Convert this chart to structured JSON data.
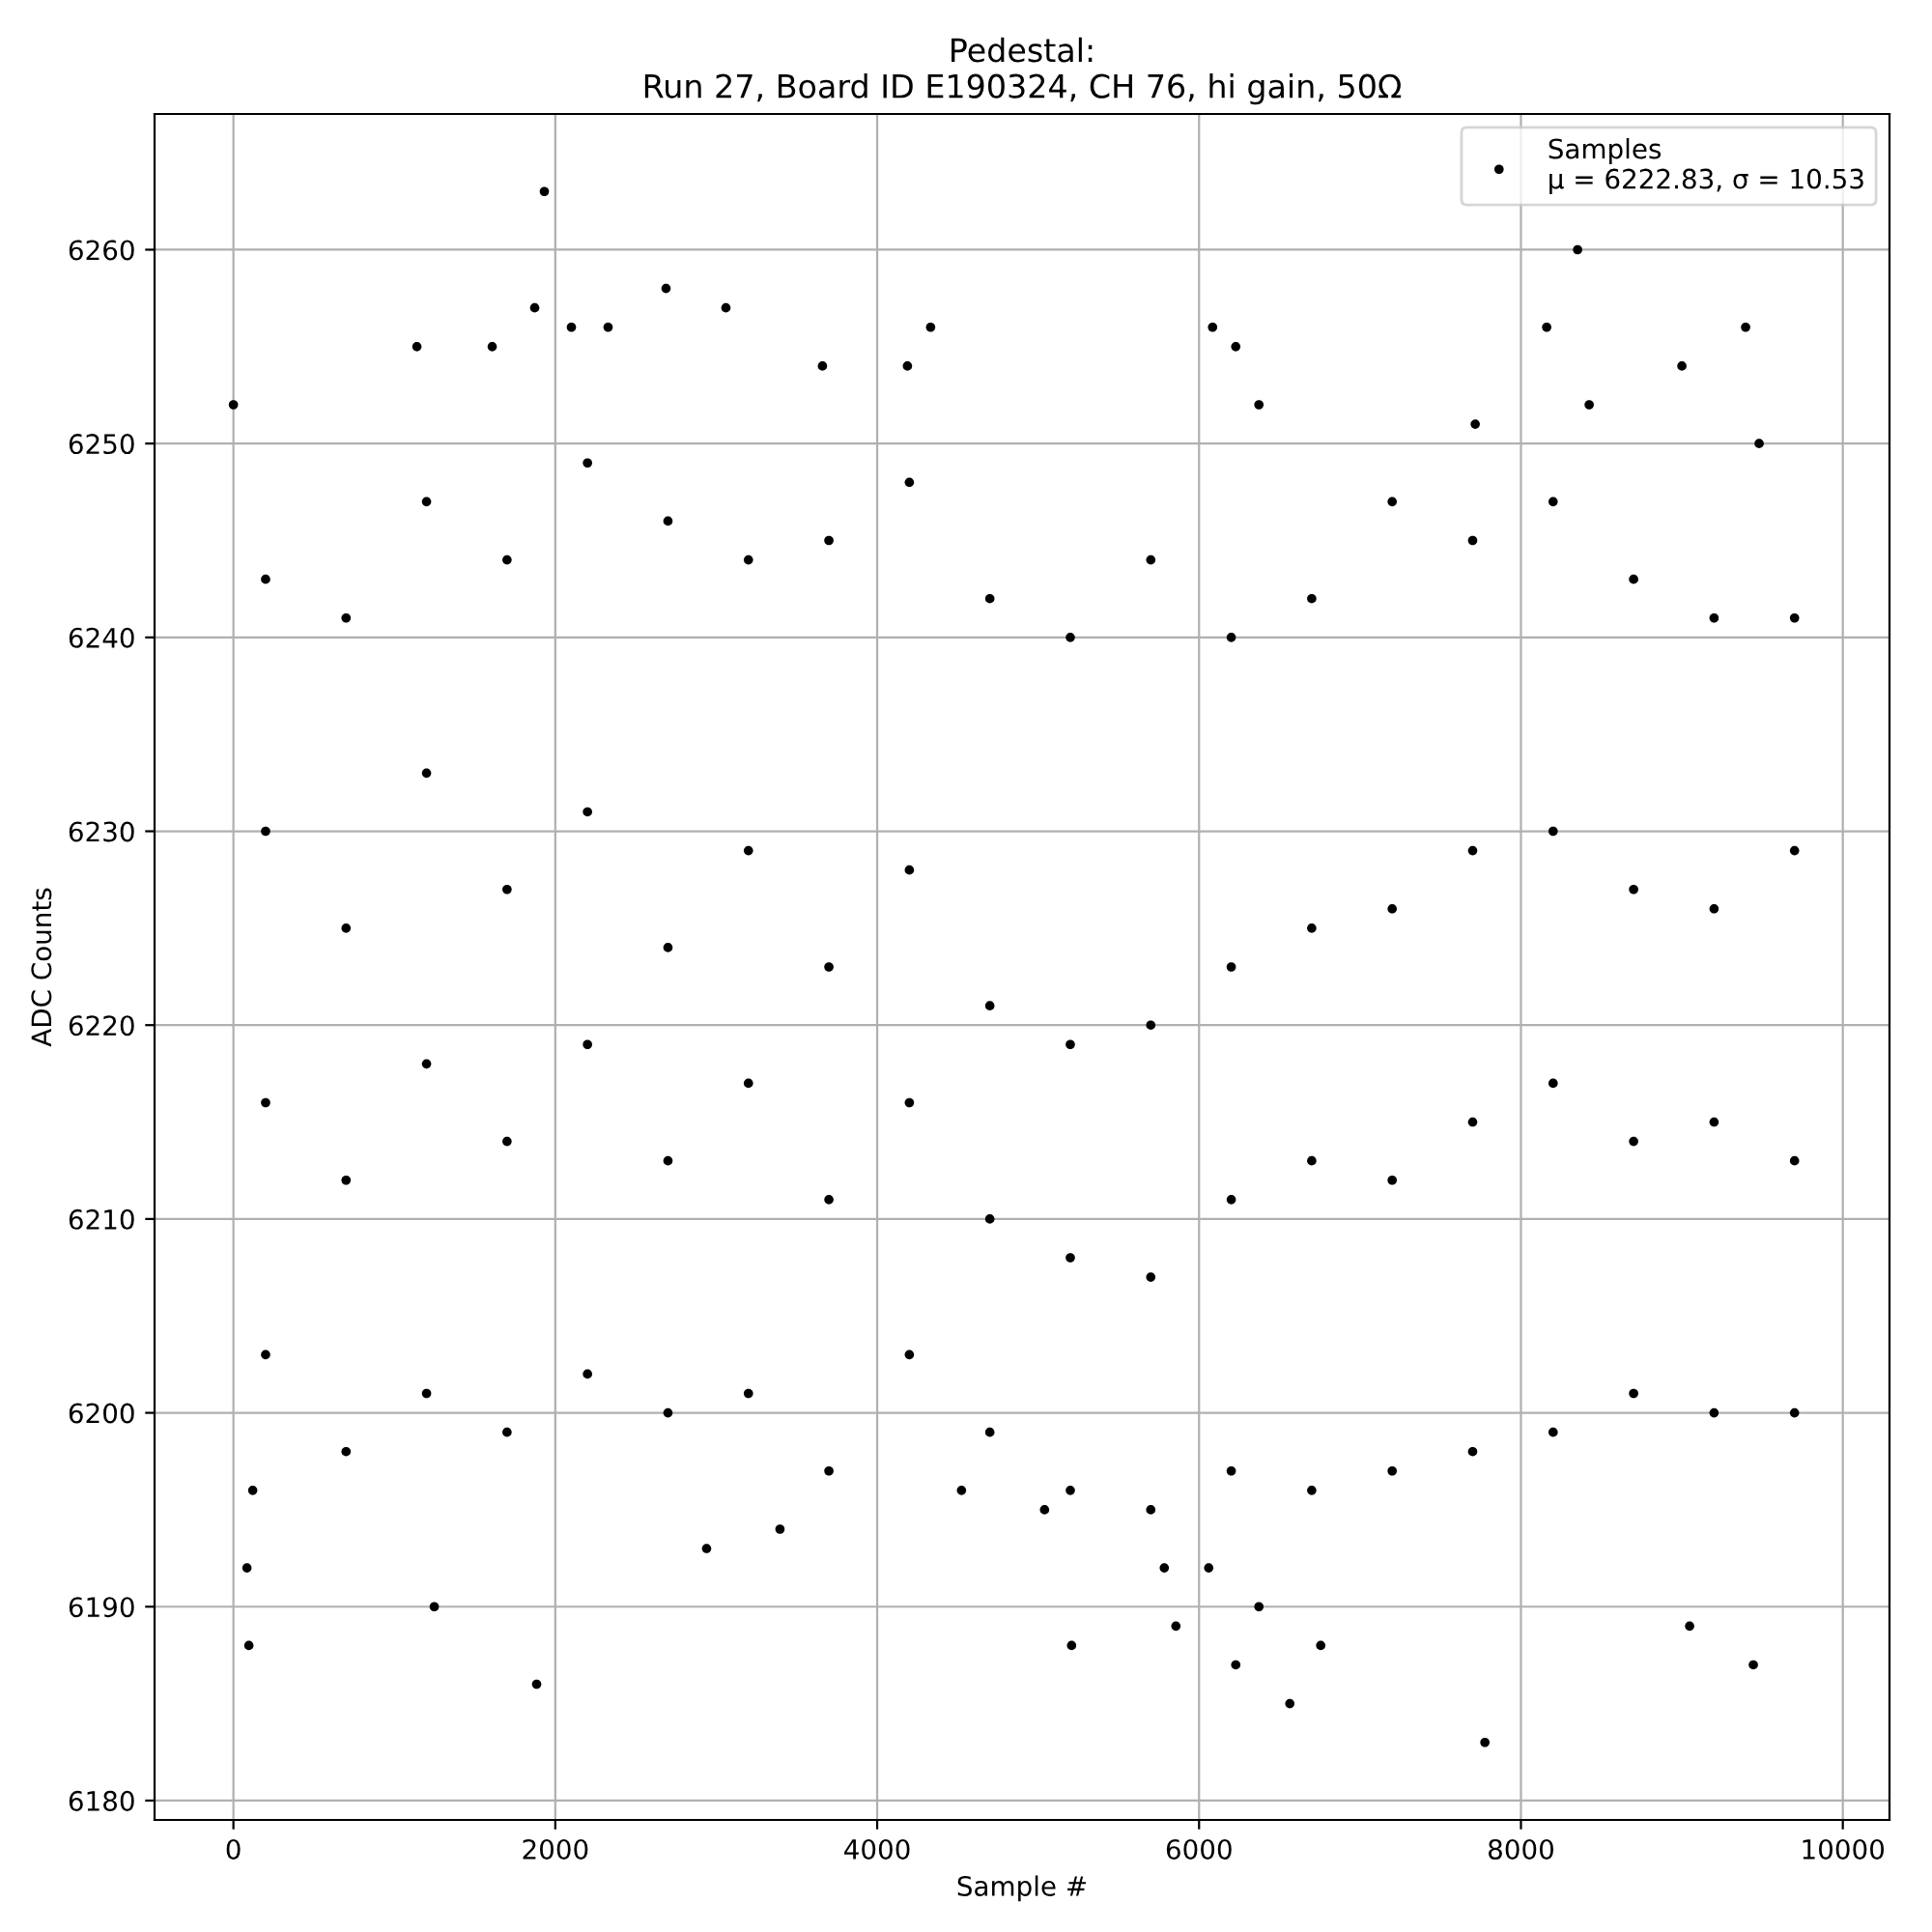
{
  "chart_data": {
    "type": "scatter",
    "title": "Pedestal:\nRun 27, Board ID E190324, CH 76, hi gain, 50Ω",
    "xlabel": "Sample #",
    "ylabel": "ADC Counts",
    "series": [
      {
        "name": "Samples\nμ = 6222.83, σ = 10.53",
        "color": "#000000",
        "x": [
          0,
          84,
          96,
          120,
          1248,
          1884,
          1932,
          1872,
          1140,
          1608,
          2100,
          2328,
          2688,
          3060,
          2940,
          3396,
          3660,
          4332,
          4188,
          4524,
          5040,
          5208,
          5856,
          5784,
          6060,
          6228,
          6372,
          6564,
          6756,
          6084,
          6228,
          6372,
          7776,
          7716,
          8160,
          8352,
          8424,
          9000,
          9048,
          9396,
          9444,
          9480,
          200,
          200,
          200,
          200,
          700,
          700,
          700,
          700,
          1200,
          1200,
          1200,
          1200,
          1700,
          1700,
          1700,
          1700,
          2200,
          2200,
          2200,
          2200,
          2700,
          2700,
          2700,
          2700,
          3200,
          3200,
          3200,
          3200,
          3700,
          3700,
          3700,
          3700,
          4200,
          4200,
          4200,
          4200,
          4700,
          4700,
          4700,
          4700,
          5200,
          5200,
          5200,
          5200,
          5700,
          5700,
          5700,
          5700,
          6200,
          6200,
          6200,
          6200,
          6700,
          6700,
          6700,
          6700,
          7200,
          7200,
          7200,
          7200,
          7700,
          7700,
          7700,
          7700,
          8200,
          8200,
          8200,
          8200,
          8700,
          8700,
          8700,
          8700,
          9200,
          9200,
          9200,
          9200,
          9700,
          9700,
          9700,
          9700
        ],
        "values": [
          6252,
          6192,
          6188,
          6196,
          6190,
          6186,
          6263,
          6257,
          6255,
          6255,
          6256,
          6256,
          6258,
          6257,
          6193,
          6194,
          6254,
          6256,
          6254,
          6196,
          6195,
          6188,
          6189,
          6192,
          6192,
          6187,
          6190,
          6185,
          6188,
          6256,
          6255,
          6252,
          6183,
          6251,
          6256,
          6260,
          6252,
          6254,
          6189,
          6256,
          6187,
          6250,
          6203,
          6216,
          6230,
          6243,
          6198,
          6212,
          6225,
          6241,
          6201,
          6218,
          6233,
          6247,
          6199,
          6214,
          6227,
          6244,
          6202,
          6219,
          6231,
          6249,
          6200,
          6213,
          6224,
          6246,
          6201,
          6217,
          6229,
          6244,
          6197,
          6211,
          6223,
          6245,
          6203,
          6216,
          6228,
          6248,
          6199,
          6210,
          6221,
          6242,
          6196,
          6208,
          6219,
          6240,
          6195,
          6207,
          6220,
          6244,
          6197,
          6211,
          6223,
          6240,
          6196,
          6213,
          6225,
          6242,
          6197,
          6212,
          6226,
          6247,
          6198,
          6215,
          6229,
          6245,
          6199,
          6217,
          6230,
          6247,
          6201,
          6214,
          6227,
          6243,
          6200,
          6215,
          6226,
          6241,
          6200,
          6213,
          6229,
          6241
        ]
      }
    ],
    "marker": "circle",
    "xlim": [
      -490,
      10290
    ],
    "ylim": [
      6179,
      6267
    ],
    "xticks": [
      0,
      2000,
      4000,
      6000,
      8000,
      10000
    ],
    "yticks": [
      6180,
      6190,
      6200,
      6210,
      6220,
      6230,
      6240,
      6250,
      6260
    ],
    "grid": true,
    "legend": "top right"
  }
}
